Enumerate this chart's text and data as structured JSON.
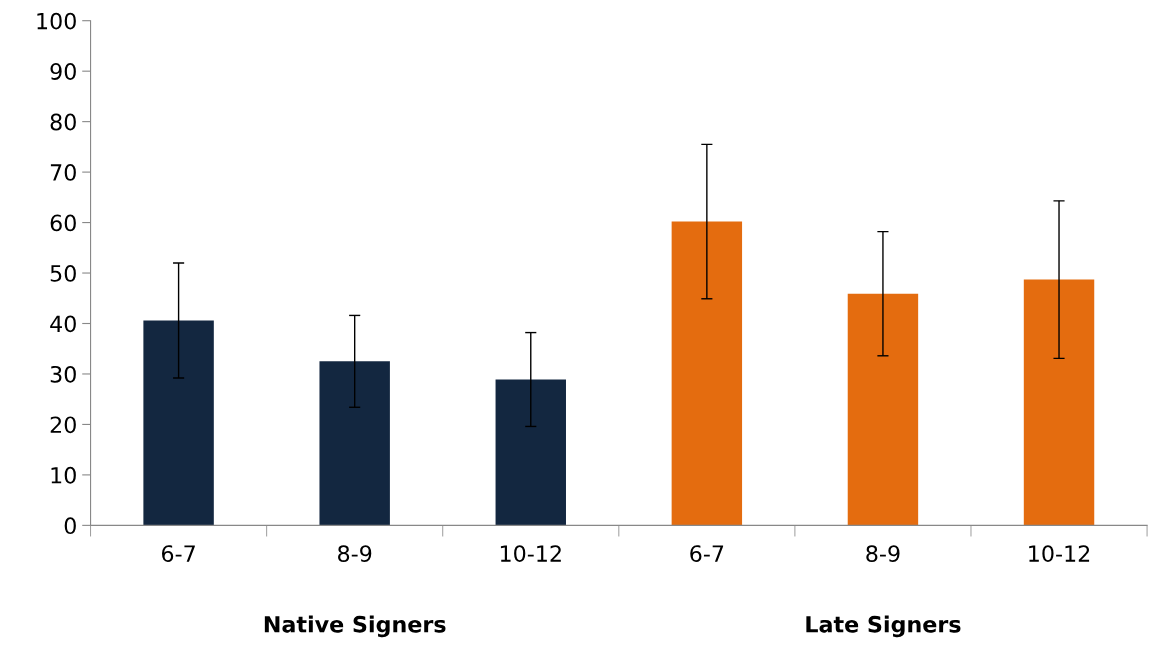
{
  "chart_data": {
    "type": "bar",
    "categories": [
      "6-7",
      "8-9",
      "10-12",
      "6-7",
      "8-9",
      "10-12"
    ],
    "values": [
      40.6,
      32.5,
      28.9,
      60.2,
      45.9,
      48.7
    ],
    "errors": [
      11.4,
      9.1,
      9.3,
      15.3,
      12.3,
      15.6
    ],
    "colors": [
      "#132740",
      "#132740",
      "#132740",
      "#e46c0f",
      "#e46c0f",
      "#e46c0f"
    ],
    "ylim": [
      0,
      100
    ],
    "yticks": [
      0,
      10,
      20,
      30,
      40,
      50,
      60,
      70,
      80,
      90,
      100
    ],
    "annotations": [
      "Native Signers",
      "Late Signers"
    ],
    "grid": false
  }
}
